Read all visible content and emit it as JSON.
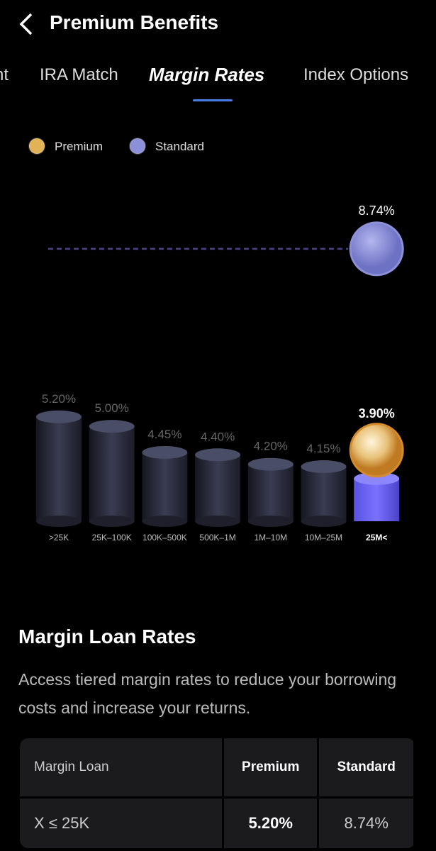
{
  "header": {
    "title": "Premium Benefits"
  },
  "tabs": {
    "items": [
      "nt",
      "IRA Match",
      "Margin Rates",
      "Index Options"
    ],
    "active": 2
  },
  "chart_data": {
    "type": "bar",
    "categories": [
      ">25K",
      "25K–100K",
      "100K–500K",
      "500K–1M",
      "1M–10M",
      "10M–25M",
      "25M<"
    ],
    "series": [
      {
        "name": "Premium",
        "color": "#e2b256",
        "values": [
          5.2,
          5.0,
          4.45,
          4.4,
          4.2,
          4.15,
          3.9
        ],
        "value_labels": [
          "5.20%",
          "5.00%",
          "4.45%",
          "4.40%",
          "4.20%",
          "4.15%",
          "3.90%"
        ]
      },
      {
        "name": "Standard",
        "color": "#8c90d8",
        "values": [
          null,
          null,
          null,
          null,
          null,
          null,
          8.74
        ],
        "value_labels": [
          null,
          null,
          null,
          null,
          null,
          null,
          "8.74%"
        ]
      }
    ],
    "ylim": [
      3.0,
      9.5
    ]
  },
  "section": {
    "title": "Margin Loan Rates",
    "description": "Access tiered margin rates to reduce your borrowing costs and increase your returns."
  },
  "table": {
    "header": [
      "Margin Loan",
      "Premium",
      "Standard"
    ],
    "rows": [
      [
        "X ≤ 25K",
        "5.20%",
        "8.74%"
      ]
    ]
  }
}
